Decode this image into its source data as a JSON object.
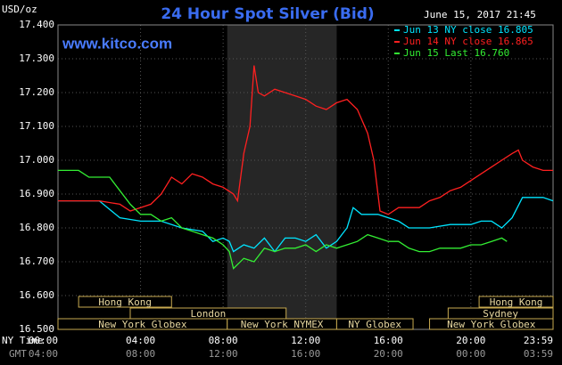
{
  "chart_data": {
    "type": "line",
    "title": "24 Hour Spot Silver (Bid)",
    "y_label": "USD/oz",
    "timestamp": "June 15, 2017 21:45",
    "watermark": "www.kitco.com",
    "x_row_label": "NY Time",
    "x2_row_label": "GMT",
    "xlim": [
      0,
      23.983
    ],
    "ylim": [
      16.5,
      17.4
    ],
    "xticks": [
      {
        "value": 0,
        "label": "00:00"
      },
      {
        "value": 4,
        "label": "04:00"
      },
      {
        "value": 8,
        "label": "08:00"
      },
      {
        "value": 12,
        "label": "12:00"
      },
      {
        "value": 16,
        "label": "16:00"
      },
      {
        "value": 20,
        "label": "20:00"
      },
      {
        "value": 23.983,
        "label": "23:59"
      }
    ],
    "x2ticks": [
      {
        "value": 0,
        "label": "04:00"
      },
      {
        "value": 4,
        "label": "08:00"
      },
      {
        "value": 8,
        "label": "12:00"
      },
      {
        "value": 12,
        "label": "16:00"
      },
      {
        "value": 16,
        "label": "20:00"
      },
      {
        "value": 20,
        "label": "00:00"
      },
      {
        "value": 23.983,
        "label": "03:59"
      }
    ],
    "yticks": [
      {
        "value": 17.4,
        "label": "17.400"
      },
      {
        "value": 17.3,
        "label": "17.300"
      },
      {
        "value": 17.2,
        "label": "17.200"
      },
      {
        "value": 17.1,
        "label": "17.100"
      },
      {
        "value": 17.0,
        "label": "17.000"
      },
      {
        "value": 16.9,
        "label": "16.900"
      },
      {
        "value": 16.8,
        "label": "16.800"
      },
      {
        "value": 16.7,
        "label": "16.700"
      },
      {
        "value": 16.6,
        "label": "16.600"
      },
      {
        "value": 16.5,
        "label": "16.500"
      }
    ],
    "grid": true,
    "highlight_range": [
      8.2,
      13.5
    ],
    "session_rows": [
      [
        {
          "label": "Hong Kong",
          "start": 1,
          "end": 5.5
        },
        {
          "label": "Hong Kong",
          "start": 20.4,
          "end": 23.983
        }
      ],
      [
        {
          "label": "London",
          "start": 3.5,
          "end": 11.05
        },
        {
          "label": "Sydney",
          "start": 18.9,
          "end": 23.983
        }
      ],
      [
        {
          "label": "New York Globex",
          "start": 0,
          "end": 8.2
        },
        {
          "label": "New York NYMEX",
          "start": 8.2,
          "end": 13.5
        },
        {
          "label": "NY Globex",
          "start": 13.5,
          "end": 17.2
        },
        {
          "label": "New York Globex",
          "start": 18.0,
          "end": 23.983
        }
      ]
    ],
    "series": [
      {
        "name": "Jun 13 NY close 16.805",
        "color": "#00e5ff",
        "x": [
          0,
          1,
          2,
          2.4,
          3,
          4,
          5,
          6,
          7,
          7.5,
          8,
          8.3,
          8.5,
          9,
          9.5,
          10,
          10.5,
          11,
          11.5,
          12,
          12.5,
          13,
          13.5,
          14,
          14.3,
          14.7,
          15,
          15.5,
          16,
          16.5,
          17,
          17.5,
          18,
          19,
          19.5,
          20,
          20.5,
          21,
          21.5,
          22,
          22.5,
          23,
          23.5,
          23.983
        ],
        "values": [
          16.88,
          16.88,
          16.88,
          16.86,
          16.83,
          16.82,
          16.82,
          16.8,
          16.79,
          16.76,
          16.77,
          16.76,
          16.73,
          16.75,
          16.74,
          16.77,
          16.73,
          16.77,
          16.77,
          16.76,
          16.78,
          16.74,
          16.76,
          16.8,
          16.86,
          16.84,
          16.84,
          16.84,
          16.83,
          16.82,
          16.8,
          16.8,
          16.8,
          16.81,
          16.81,
          16.81,
          16.82,
          16.82,
          16.8,
          16.83,
          16.89,
          16.89,
          16.89,
          16.88
        ]
      },
      {
        "name": "Jun 14 NY close 16.865",
        "color": "#ff2020",
        "x": [
          0,
          1,
          2,
          3,
          3.5,
          4,
          4.5,
          5,
          5.5,
          6,
          6.5,
          7,
          7.5,
          8,
          8.5,
          8.7,
          9,
          9.3,
          9.5,
          9.7,
          10,
          10.5,
          11,
          11.5,
          12,
          12.5,
          13,
          13.5,
          14,
          14.5,
          15,
          15.3,
          15.6,
          16,
          16.5,
          17,
          17.5,
          18,
          18.5,
          19,
          19.5,
          20,
          20.5,
          21,
          21.5,
          22,
          22.3,
          22.5,
          23,
          23.5,
          23.983
        ],
        "values": [
          16.88,
          16.88,
          16.88,
          16.87,
          16.85,
          16.86,
          16.87,
          16.9,
          16.95,
          16.93,
          16.96,
          16.95,
          16.93,
          16.92,
          16.9,
          16.88,
          17.02,
          17.1,
          17.28,
          17.2,
          17.19,
          17.21,
          17.2,
          17.19,
          17.18,
          17.16,
          17.15,
          17.17,
          17.18,
          17.15,
          17.08,
          17.0,
          16.85,
          16.84,
          16.86,
          16.86,
          16.86,
          16.88,
          16.89,
          16.91,
          16.92,
          16.94,
          16.96,
          16.98,
          17.0,
          17.02,
          17.03,
          17.0,
          16.98,
          16.97,
          16.97
        ]
      },
      {
        "name": "Jun 15 Last 16.760",
        "color": "#33ee33",
        "x": [
          0,
          1,
          1.5,
          2,
          2.5,
          3,
          3.5,
          4,
          4.5,
          5,
          5.5,
          6,
          6.5,
          7,
          7.5,
          8,
          8.3,
          8.5,
          9,
          9.5,
          10,
          10.5,
          11,
          11.5,
          12,
          12.5,
          13,
          13.5,
          14,
          14.5,
          15,
          15.5,
          16,
          16.5,
          17,
          17.5,
          18,
          18.5,
          19,
          19.5,
          20,
          20.5,
          21,
          21.5,
          21.75
        ],
        "values": [
          16.97,
          16.97,
          16.95,
          16.95,
          16.95,
          16.91,
          16.87,
          16.84,
          16.84,
          16.82,
          16.83,
          16.8,
          16.79,
          16.78,
          16.77,
          16.75,
          16.73,
          16.68,
          16.71,
          16.7,
          16.74,
          16.73,
          16.74,
          16.74,
          16.75,
          16.73,
          16.75,
          16.74,
          16.75,
          16.76,
          16.78,
          16.77,
          16.76,
          16.76,
          16.74,
          16.73,
          16.73,
          16.74,
          16.74,
          16.74,
          16.75,
          16.75,
          16.76,
          16.77,
          16.76
        ]
      }
    ]
  }
}
